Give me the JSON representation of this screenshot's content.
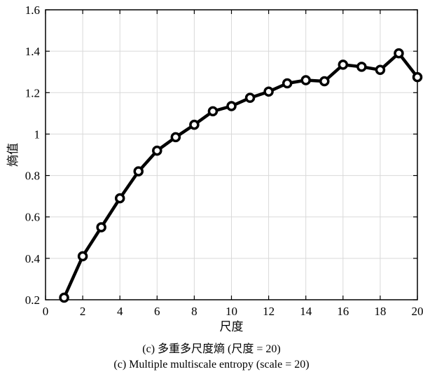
{
  "chart_data": {
    "type": "line",
    "title": "",
    "xlabel": "尺度",
    "ylabel": "熵值",
    "xlim": [
      0,
      20
    ],
    "ylim": [
      0.2,
      1.6
    ],
    "xticks": [
      0,
      2,
      4,
      6,
      8,
      10,
      12,
      14,
      16,
      18,
      20
    ],
    "xtick_labels": [
      "0",
      "2",
      "4",
      "6",
      "8",
      "10",
      "12",
      "14",
      "16",
      "18",
      "20"
    ],
    "yticks": [
      0.2,
      0.4,
      0.6,
      0.8,
      1.0,
      1.2,
      1.4,
      1.6
    ],
    "ytick_labels": [
      "0.2",
      "0.4",
      "0.6",
      "0.8",
      "1",
      "1.2",
      "1.4",
      "1.6"
    ],
    "grid": true,
    "legend": "none",
    "series": [
      {
        "x": [
          1,
          2,
          3,
          4,
          5,
          6,
          7,
          8,
          9,
          10,
          11,
          12,
          13,
          14,
          15,
          16,
          17,
          18,
          19,
          20
        ],
        "y": [
          0.21,
          0.41,
          0.55,
          0.69,
          0.82,
          0.92,
          0.985,
          1.045,
          1.11,
          1.135,
          1.175,
          1.205,
          1.245,
          1.26,
          1.255,
          1.335,
          1.325,
          1.31,
          1.39,
          1.275
        ],
        "color": "#000000",
        "marker": "circle-open"
      }
    ]
  },
  "captions": {
    "cn": "(c) 多重多尺度熵 (尺度 = 20)",
    "en": "(c) Multiple multiscale entropy (scale = 20)"
  }
}
